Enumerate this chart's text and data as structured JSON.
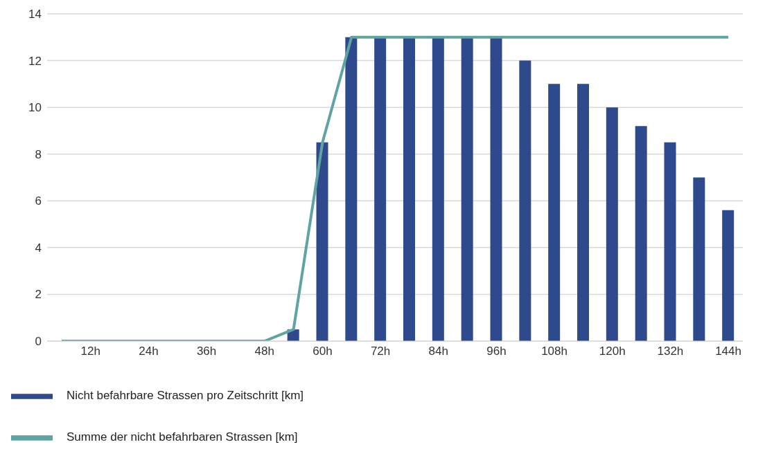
{
  "chart_data": {
    "type": "bar",
    "categories": [
      null,
      "12h",
      null,
      "24h",
      null,
      "36h",
      null,
      "48h",
      null,
      "60h",
      null,
      "72h",
      null,
      "84h",
      null,
      "96h",
      null,
      "108h",
      null,
      "120h",
      null,
      "132h",
      null,
      "144h"
    ],
    "series": [
      {
        "name": "Nicht befahrbare Strassen pro Zeitschritt [km]",
        "color": "#2e4a8c",
        "values": [
          null,
          null,
          null,
          null,
          null,
          null,
          null,
          null,
          0.5,
          8.5,
          13,
          13,
          13,
          13,
          13,
          13,
          12,
          11,
          11,
          10,
          9.2,
          8.5,
          7,
          5.6
        ]
      },
      {
        "name": "Summe der nicht befahrbaren Strassen [km]",
        "type": "line",
        "color": "#5fa3a3",
        "values": [
          0,
          0,
          0,
          0,
          0,
          0,
          0,
          0,
          0.5,
          8.5,
          13,
          13,
          13,
          13,
          13,
          13,
          13,
          13,
          13,
          13,
          13,
          13,
          13,
          13
        ]
      }
    ],
    "ylim": [
      0,
      14
    ],
    "yticks": [
      0,
      2,
      4,
      6,
      8,
      10,
      12,
      14
    ],
    "grid": "y",
    "legend": "bottom left",
    "marker": "none"
  }
}
